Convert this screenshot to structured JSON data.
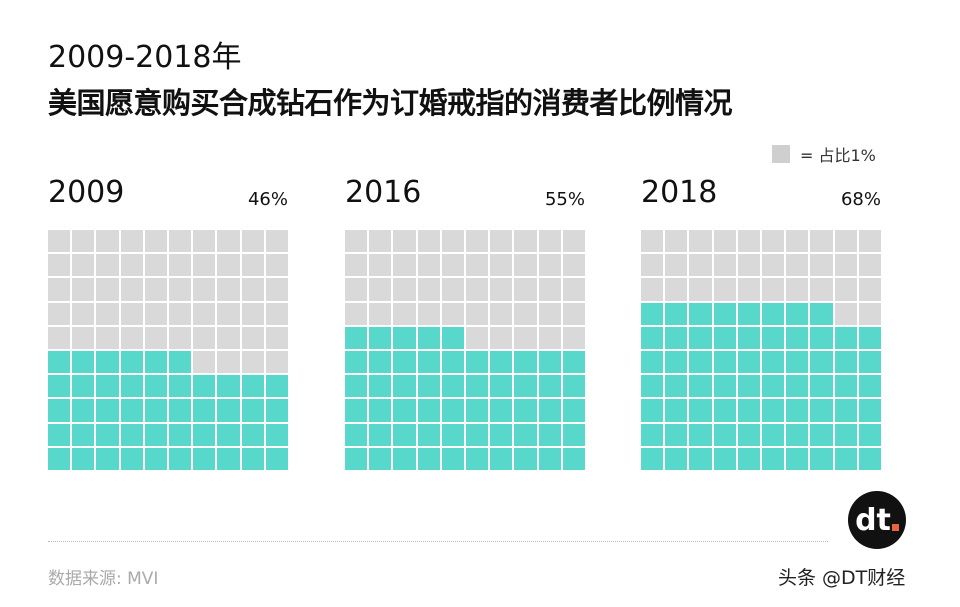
{
  "chart_data": {
    "type": "waffle",
    "title": "2009-2018年",
    "subtitle": "美国愿意购买合成钻石作为订婚戒指的消费者比例情况",
    "legend": "= 占比1%",
    "legend_placement": "top-right",
    "grid": "10x10",
    "panels": [
      {
        "year": "2009",
        "value": 46,
        "label": "46%"
      },
      {
        "year": "2016",
        "value": 55,
        "label": "55%"
      },
      {
        "year": "2018",
        "value": 68,
        "label": "68%"
      }
    ],
    "colors": {
      "filled": "#58d8cb",
      "empty": "#d9d9d9"
    }
  },
  "footer": {
    "source": "数据来源: MVI",
    "logo_text": "dt",
    "watermark": "头条 @DT财经"
  }
}
